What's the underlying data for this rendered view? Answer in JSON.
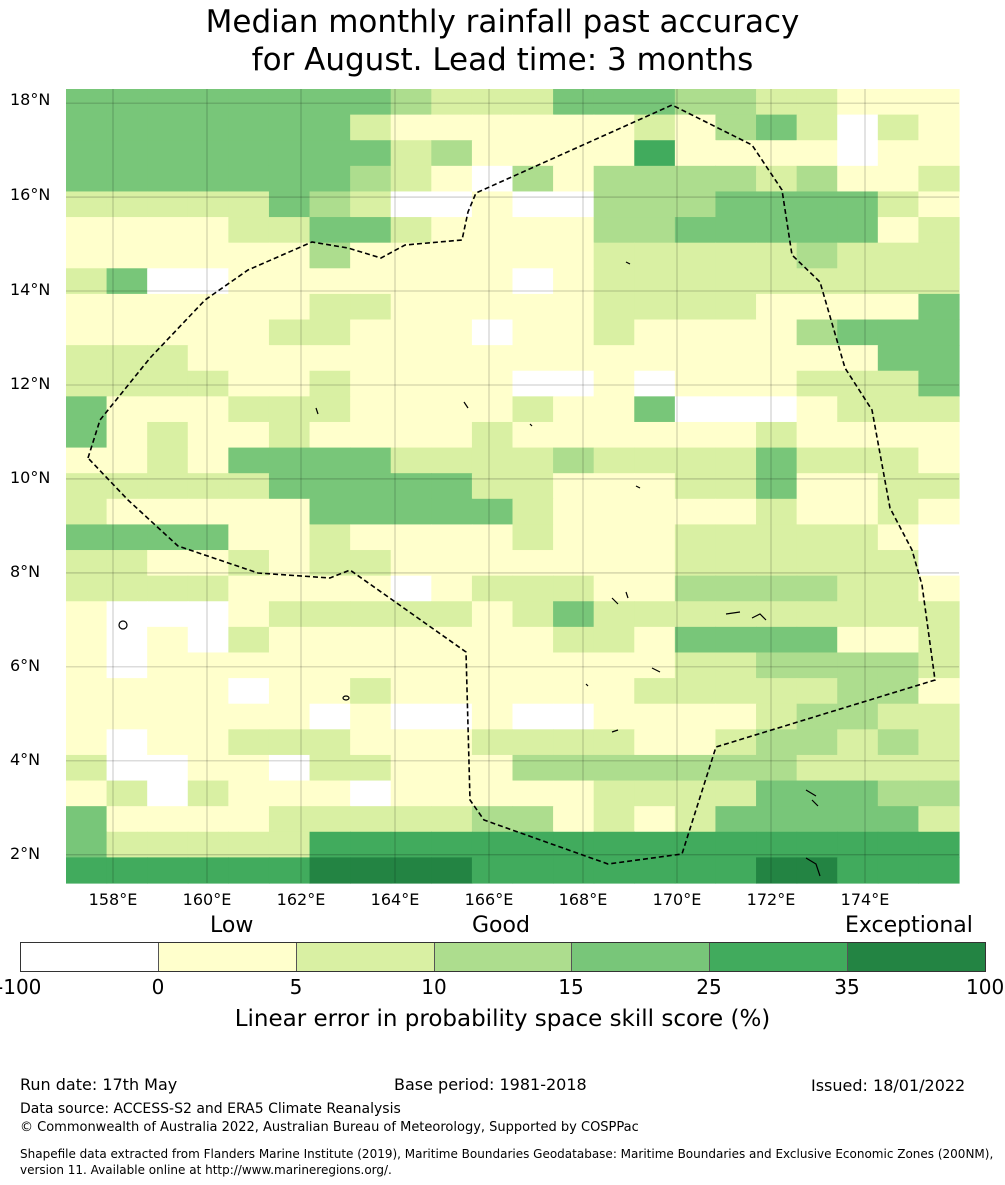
{
  "title": {
    "line1": "Median monthly rainfall past accuracy",
    "line2": "for August. Lead time: 3 months"
  },
  "map": {
    "lon_range": [
      157.0,
      176.0
    ],
    "lat_range": [
      1.4,
      18.3
    ],
    "lat_ticks": [
      "18°N",
      "16°N",
      "14°N",
      "12°N",
      "10°N",
      "8°N",
      "6°N",
      "4°N",
      "2°N"
    ],
    "lon_ticks": [
      "158°E",
      "160°E",
      "162°E",
      "164°E",
      "166°E",
      "168°E",
      "170°E",
      "172°E",
      "174°E"
    ],
    "grid_lines": true,
    "skill_grid": [
      "4444444432224443322111",
      "4444444211111121342021",
      "4444444423111151111011",
      "4444444321031333323112",
      "2222243200100333444421",
      "1111224421111334444412",
      "1111113111111222223222",
      "2400111111101222222222",
      "1111112211111222211114",
      "1111122111011211113444",
      "2221111111111111111144",
      "2222112111100101112224",
      "4111222111121140001222",
      "4121121111211111121111",
      "1121444422223222242221",
      "2222244444221112241122",
      "2111114444421111121121",
      "4444112111121112222210",
      "2211212211111112222220",
      "2222111101222113333221",
      "1000122222124222222222",
      "1010211111112214444112",
      "1011111111111112233332",
      "1111011211111122222331",
      "1111110100100111123322",
      "1011222111222211233232",
      "2001102211133333332222",
      "1202111011111222244433",
      "4111122222331212444442",
      "4222225555555555555555",
      "5555556666555555566555"
    ]
  },
  "categories": {
    "low": "Low",
    "good": "Good",
    "exceptional": "Exceptional"
  },
  "colorbar": {
    "ticks": [
      "-100",
      "0",
      "5",
      "10",
      "15",
      "25",
      "35",
      "100"
    ],
    "colors": [
      "#ffffff",
      "#ffffcc",
      "#d9f0a3",
      "#addd8e",
      "#78c679",
      "#41ab5d",
      "#238443"
    ],
    "label": "Linear error in probability space skill score (%)"
  },
  "footer": {
    "run_date": "Run date: 17th May",
    "base_period": "Base period: 1981-2018",
    "issued": "Issued: 18/01/2022",
    "data_source": "Data source: ACCESS-S2 and ERA5 Climate Reanalysis",
    "copyright": "© Commonwealth of Australia 2022, Australian Bureau of Meteorology, Supported by COSPPac",
    "shapefile_line1": "Shapefile data extracted from Flanders Marine Institute (2019), Maritime Boundaries Geodatabase: Maritime Boundaries and Exclusive Economic Zones (200NM),",
    "shapefile_line2": "version 11. Available online at http://www.marineregions.org/."
  }
}
